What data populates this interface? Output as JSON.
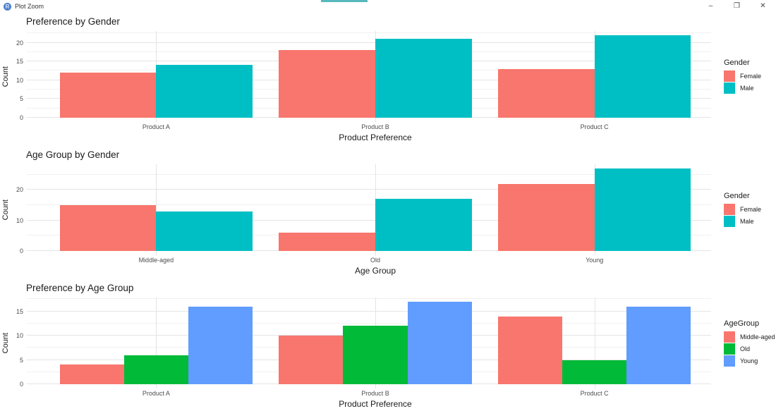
{
  "window": {
    "title": "Plot Zoom",
    "icons": {
      "app": "R",
      "minimize": "–",
      "restore": "❐",
      "close": "✕"
    },
    "accent_strip_color": "#57B9BB"
  },
  "palette": {
    "grid_major": "#E4E4E4",
    "grid_minor": "#F1F1F1",
    "axis_text": "#4D4D4D",
    "title_text": "#1A1A1A"
  },
  "chart_data": [
    {
      "type": "bar",
      "title": "Preference by Gender",
      "xlabel": "Product Preference",
      "ylabel": "Count",
      "categories": [
        "Product A",
        "Product B",
        "Product C"
      ],
      "series": [
        {
          "name": "Female",
          "color": "#F8766D",
          "values": [
            12,
            18,
            13
          ]
        },
        {
          "name": "Male",
          "color": "#00BFC4",
          "values": [
            14,
            21,
            22
          ]
        }
      ],
      "legend_title": "Gender",
      "legend_position": "right",
      "yticks": [
        0,
        5,
        10,
        15,
        20
      ],
      "ylim": [
        0,
        23.1
      ],
      "grid": true
    },
    {
      "type": "bar",
      "title": "Age Group by Gender",
      "xlabel": "Age Group",
      "ylabel": "Count",
      "categories": [
        "Middle-aged",
        "Old",
        "Young"
      ],
      "series": [
        {
          "name": "Female",
          "color": "#F8766D",
          "values": [
            15,
            6,
            22
          ]
        },
        {
          "name": "Male",
          "color": "#00BFC4",
          "values": [
            13,
            17,
            27
          ]
        }
      ],
      "legend_title": "Gender",
      "legend_position": "right",
      "yticks": [
        0,
        10,
        20
      ],
      "ylim": [
        0,
        28.35
      ],
      "grid": true
    },
    {
      "type": "bar",
      "title": "Preference by Age Group",
      "xlabel": "Product Preference",
      "ylabel": "Count",
      "categories": [
        "Product A",
        "Product B",
        "Product C"
      ],
      "series": [
        {
          "name": "Middle-aged",
          "color": "#F8766D",
          "values": [
            4,
            10,
            14
          ]
        },
        {
          "name": "Old",
          "color": "#00BA38",
          "values": [
            6,
            12,
            5
          ]
        },
        {
          "name": "Young",
          "color": "#619CFF",
          "values": [
            16,
            17,
            16
          ]
        }
      ],
      "legend_title": "AgeGroup",
      "legend_position": "right",
      "yticks": [
        0,
        5,
        10,
        15
      ],
      "ylim": [
        0,
        17.85
      ],
      "grid": true
    }
  ]
}
